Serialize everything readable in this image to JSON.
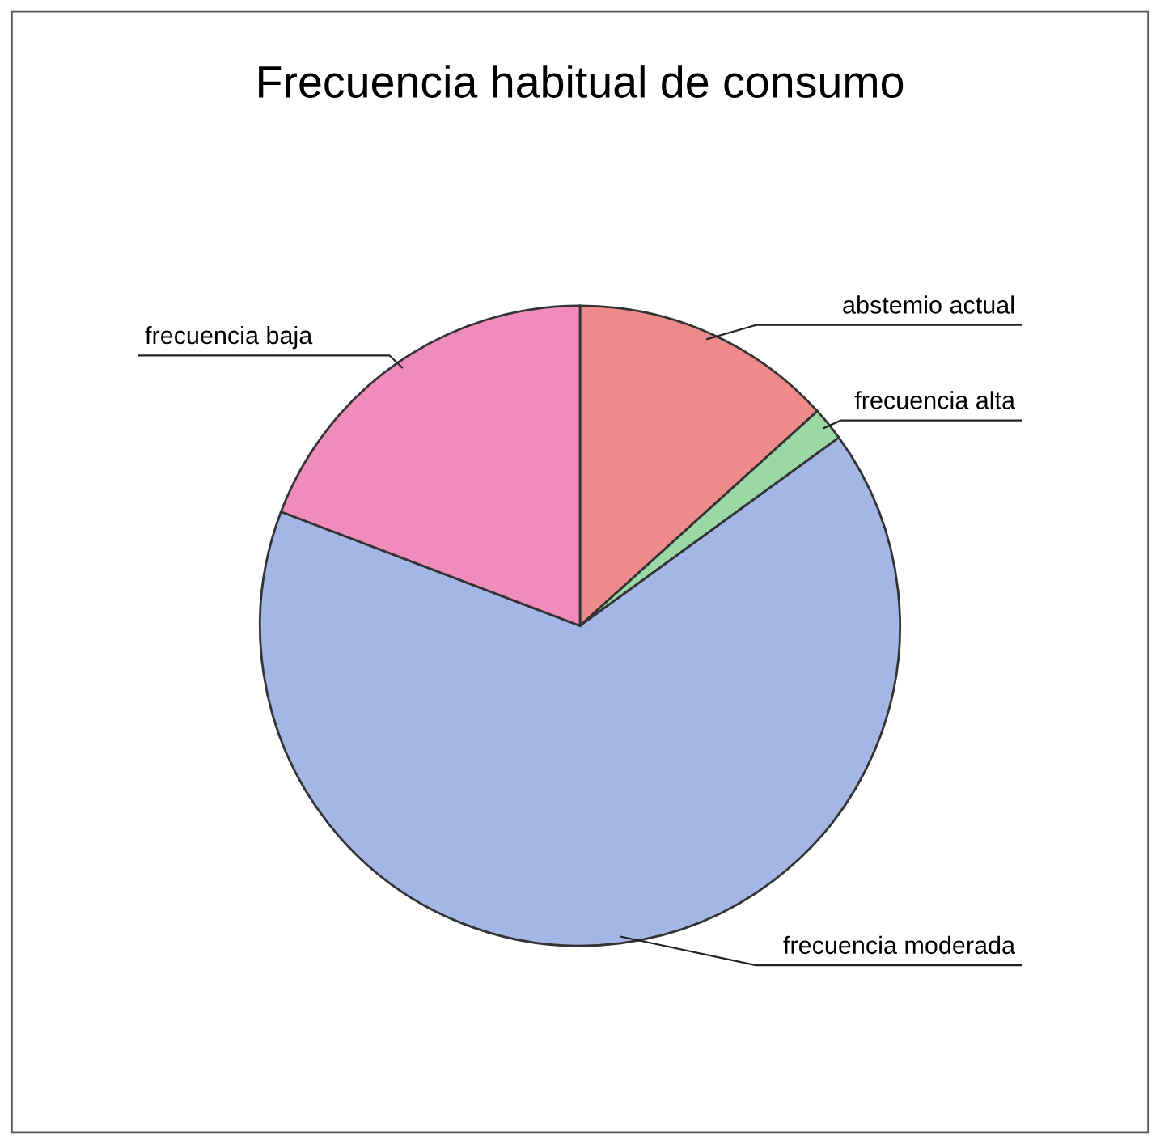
{
  "chart_data": {
    "type": "pie",
    "title": "Frecuencia habitual de consumo",
    "categories": [
      "abstemio actual",
      "frecuencia alta",
      "frecuencia moderada",
      "frecuencia baja"
    ],
    "values": [
      13.3,
      1.7,
      65.8,
      19.2
    ],
    "colors": [
      "#ef8a8a",
      "#9ad9a6",
      "#a4b6e6",
      "#ef8cbc"
    ]
  }
}
